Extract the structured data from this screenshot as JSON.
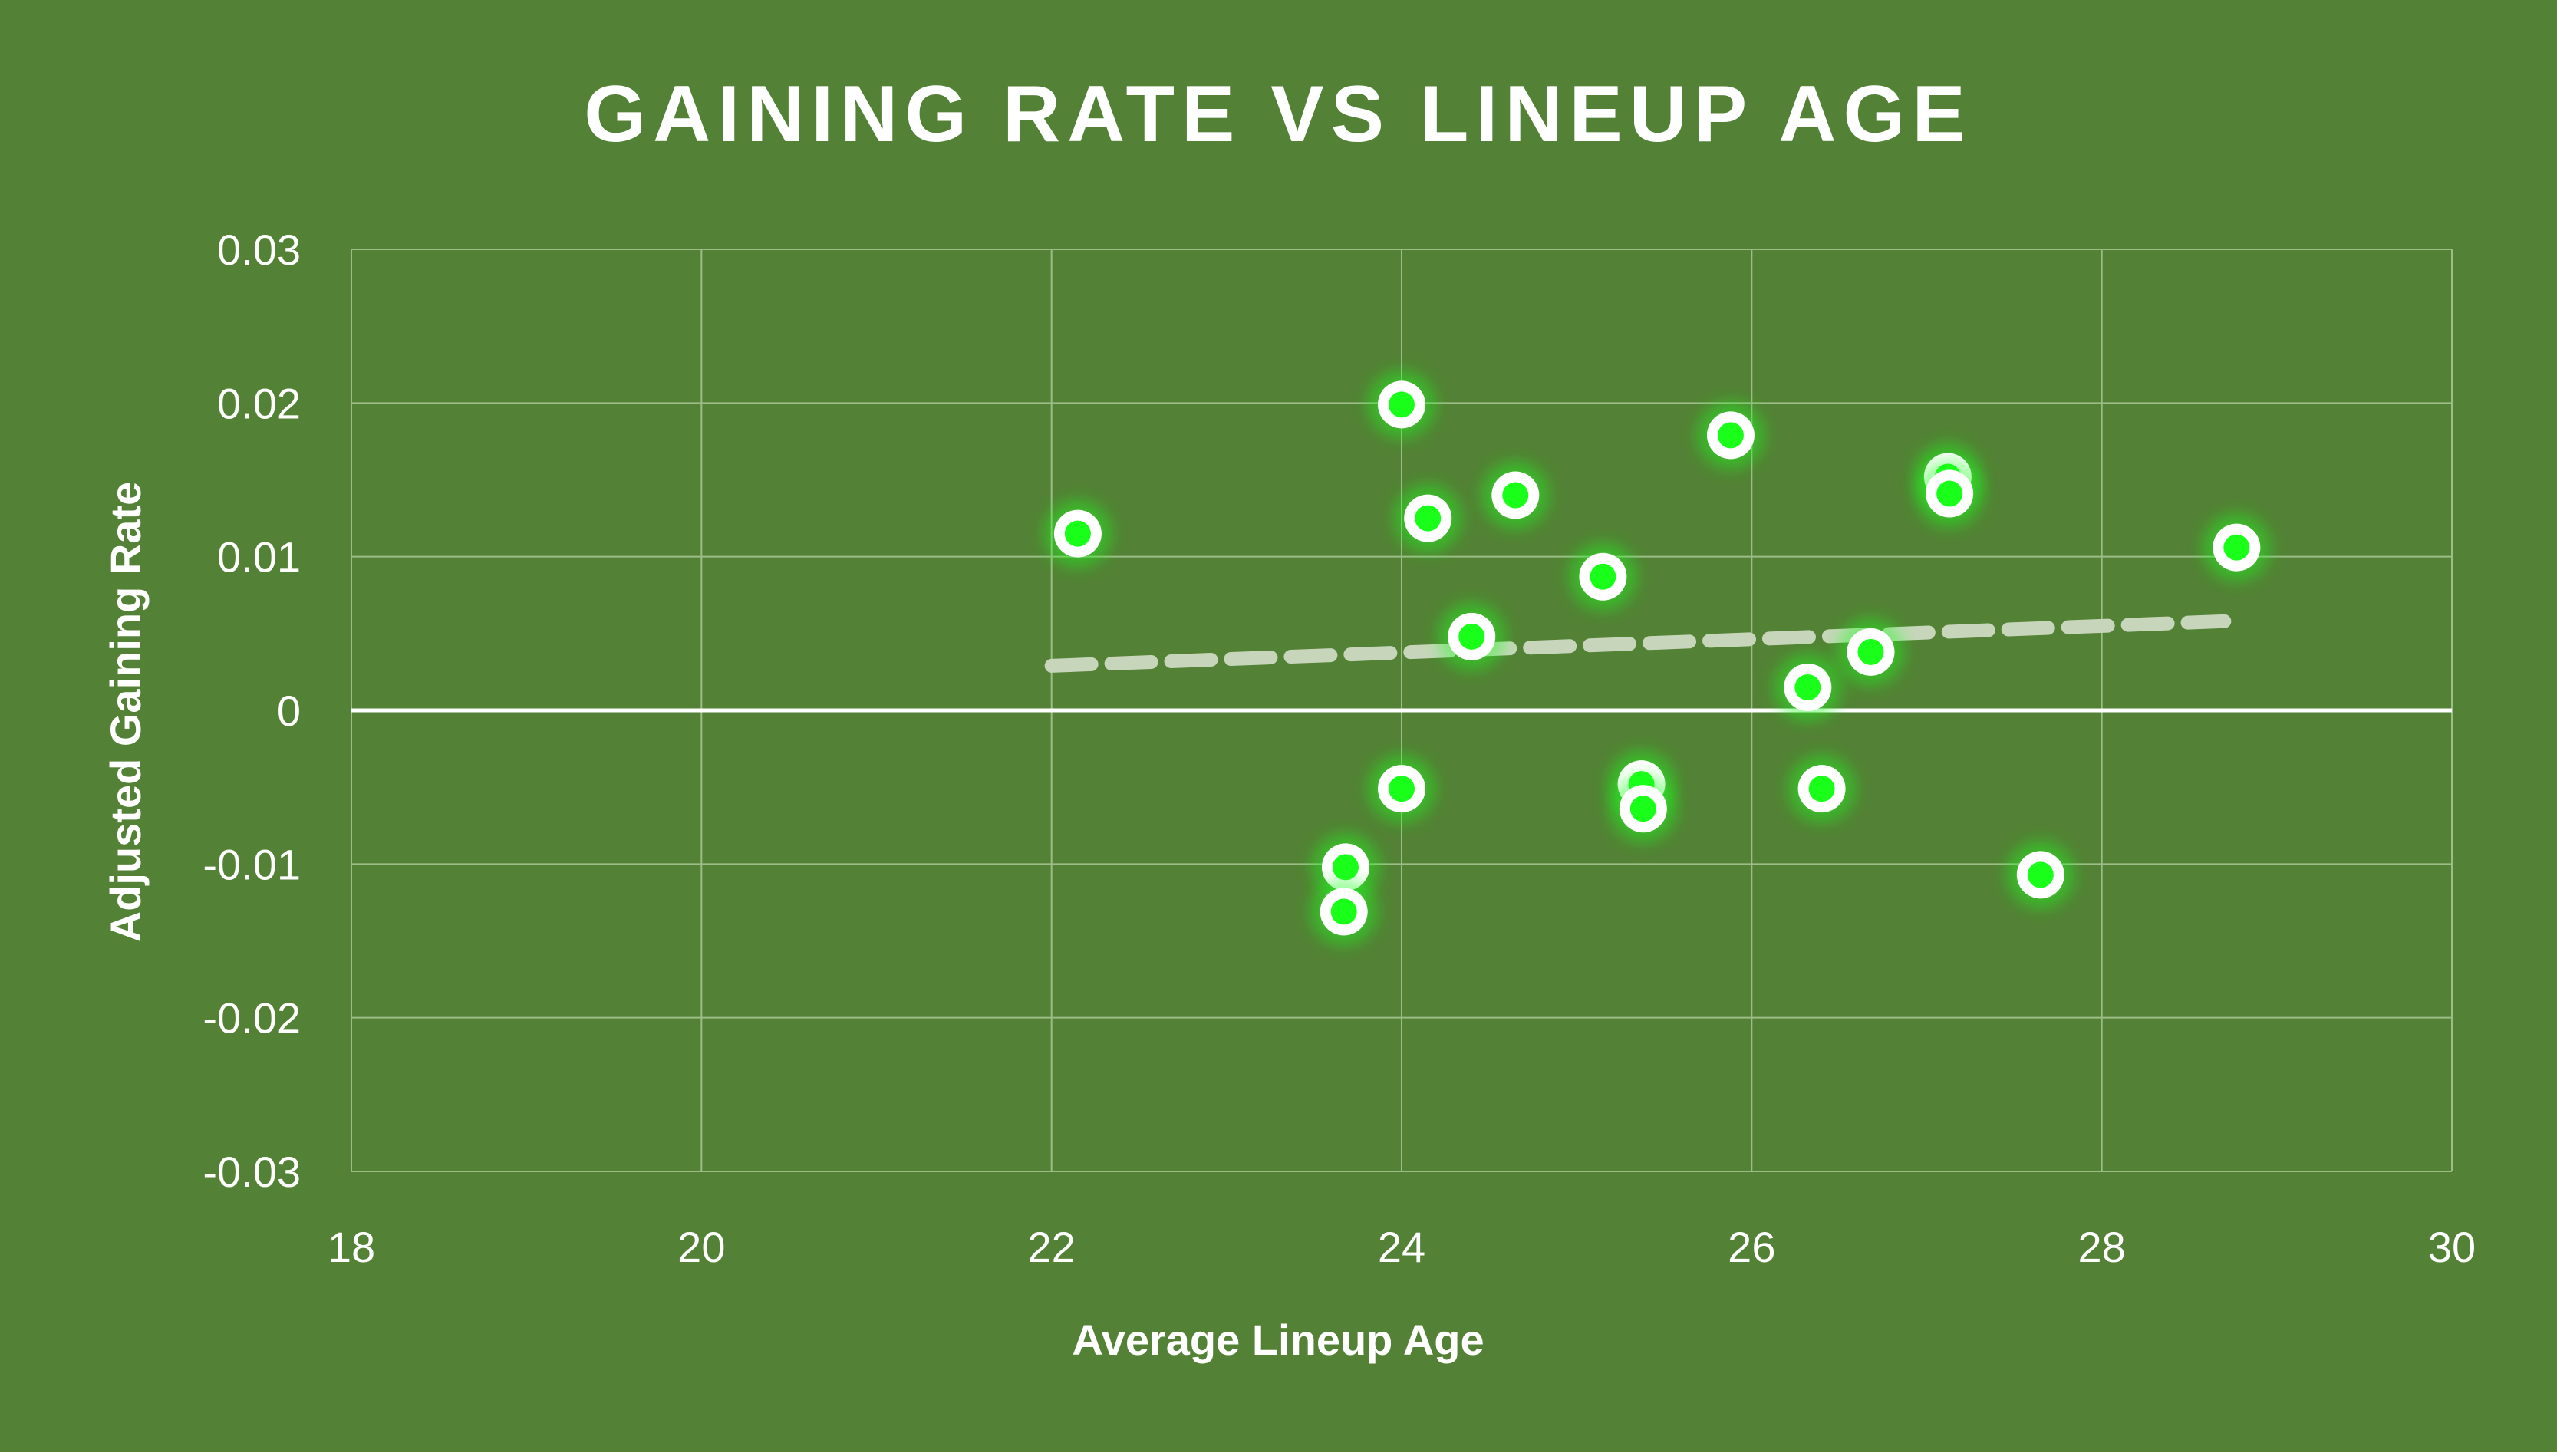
{
  "chart_data": {
    "type": "scatter",
    "title": "GAINING RATE VS LINEUP AGE",
    "xlabel": "Average Lineup Age",
    "ylabel": "Adjusted Gaining Rate",
    "xlim": [
      18,
      30
    ],
    "ylim": [
      -0.03,
      0.03
    ],
    "x_ticks": [
      "18",
      "20",
      "22",
      "24",
      "26",
      "28",
      "30"
    ],
    "y_ticks": [
      "0.03",
      "0.02",
      "0.01",
      "0",
      "-0.01",
      "-0.02",
      "-0.03"
    ],
    "grid": true,
    "legend": "none",
    "series": [
      {
        "marker": "circle",
        "points": [
          {
            "x": 22.15,
            "y": 0.0115
          },
          {
            "x": 24.0,
            "y": 0.0199
          },
          {
            "x": 24.15,
            "y": 0.0125
          },
          {
            "x": 24.65,
            "y": 0.014
          },
          {
            "x": 24.4,
            "y": 0.0048
          },
          {
            "x": 25.15,
            "y": 0.0087
          },
          {
            "x": 25.88,
            "y": 0.0179
          },
          {
            "x": 27.12,
            "y": 0.0152
          },
          {
            "x": 27.13,
            "y": 0.0141
          },
          {
            "x": 28.77,
            "y": 0.0106
          },
          {
            "x": 26.32,
            "y": 0.0015
          },
          {
            "x": 26.68,
            "y": 0.0038
          },
          {
            "x": 24.0,
            "y": -0.0051
          },
          {
            "x": 25.37,
            "y": -0.0048
          },
          {
            "x": 25.38,
            "y": -0.0064
          },
          {
            "x": 26.4,
            "y": -0.0051
          },
          {
            "x": 23.68,
            "y": -0.0102
          },
          {
            "x": 23.67,
            "y": -0.0131
          },
          {
            "x": 27.65,
            "y": -0.0107
          }
        ]
      }
    ],
    "trendline": {
      "style": "dashed",
      "x": [
        22.0,
        28.7
      ],
      "y": [
        0.0029,
        0.0058
      ]
    },
    "colors": {
      "background": "#538135",
      "gridline": "#9dbd88",
      "zero_line": "#ffffff",
      "marker_fill": "#1aff1a",
      "marker_ring": "#ffffff",
      "trendline": "#c7d6bb"
    }
  }
}
